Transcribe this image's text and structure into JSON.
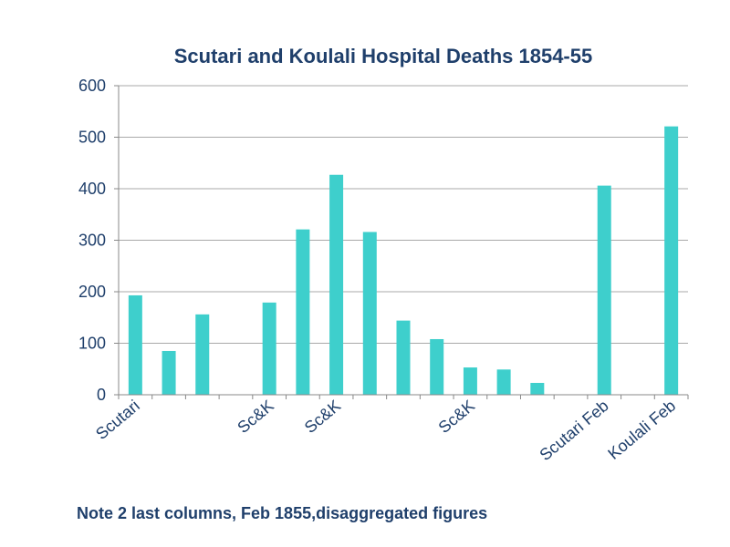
{
  "chart_data": {
    "type": "bar",
    "title": "Scutari and Koulali Hospital Deaths 1854-55",
    "note": "Note 2 last columns, Feb 1855,disaggregated figures",
    "categories": [
      "Scutari",
      "",
      "",
      "",
      "Sc&K",
      "",
      "Sc&K",
      "",
      "",
      "",
      "Sc&K",
      "",
      "",
      "",
      "Scutari Feb",
      "",
      "Koulali Feb"
    ],
    "values": [
      193,
      85,
      156,
      null,
      179,
      321,
      427,
      316,
      144,
      108,
      53,
      49,
      23,
      null,
      406,
      null,
      521
    ],
    "ylim": [
      0,
      600
    ],
    "yticks": [
      0,
      100,
      200,
      300,
      400,
      500,
      600
    ],
    "xlabel": "",
    "ylabel": "",
    "grid": true,
    "colors": {
      "bar": "#3ecfcc",
      "text": "#1f3f6b",
      "grid": "#a9a9a9",
      "axis": "#888888"
    }
  }
}
